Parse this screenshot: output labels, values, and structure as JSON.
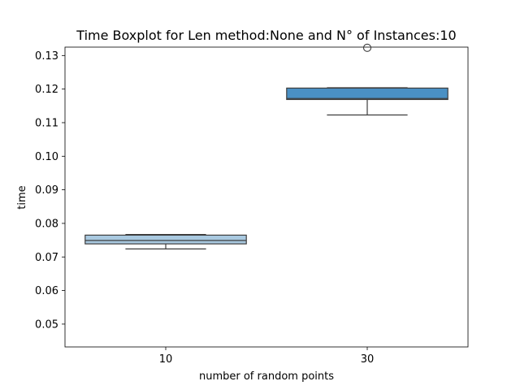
{
  "chart_data": {
    "type": "box",
    "title": "Time Boxplot for Len method:None and N° of Instances:10",
    "xlabel": "number of random points",
    "ylabel": "time",
    "categories": [
      "10",
      "30"
    ],
    "ylim": [
      0.0432,
      0.1325
    ],
    "yticks": [
      0.05,
      0.06,
      0.07,
      0.08,
      0.09,
      0.1,
      0.11,
      0.12,
      0.13
    ],
    "ytick_labels": [
      "0.05",
      "0.06",
      "0.07",
      "0.08",
      "0.09",
      "0.10",
      "0.11",
      "0.12",
      "0.13"
    ],
    "grid": false,
    "boxes": [
      {
        "category": "10",
        "whisker_low": 0.0724,
        "q1": 0.0739,
        "median": 0.0749,
        "q3": 0.0765,
        "whisker_high": 0.0767,
        "outliers": [],
        "color": "#a9c9e0"
      },
      {
        "category": "30",
        "whisker_low": 0.1123,
        "q1": 0.1169,
        "median": 0.1172,
        "q3": 0.1203,
        "whisker_high": 0.1204,
        "outliers": [
          0.1323
        ],
        "color": "#4a90c4"
      }
    ]
  }
}
